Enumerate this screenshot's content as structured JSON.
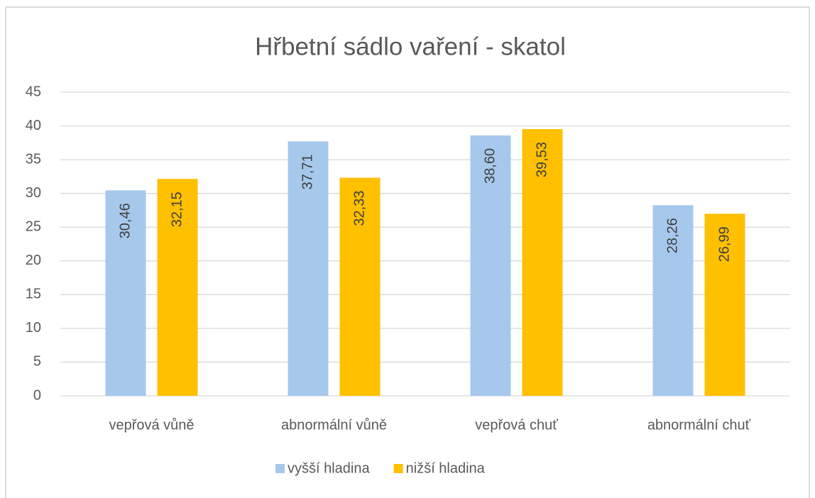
{
  "chart_data": {
    "type": "bar",
    "title": "Hřbetní sádlo vaření - skatol",
    "categories": [
      "vepřová vůně",
      "abnormální vůně",
      "vepřová chuť",
      "abnormální chuť"
    ],
    "series": [
      {
        "name": "vyšší hladina",
        "color": "#a6c8ec",
        "values": [
          30.46,
          37.71,
          38.6,
          28.26
        ],
        "value_labels": [
          "30,46",
          "37,71",
          "38,60",
          "28,26"
        ]
      },
      {
        "name": "nižší hladina",
        "color": "#ffc000",
        "values": [
          32.15,
          32.33,
          39.53,
          26.99
        ],
        "value_labels": [
          "32,15",
          "32,33",
          "39,53",
          "26,99"
        ]
      }
    ],
    "ylim": [
      0,
      45
    ],
    "yticks": [
      0,
      5,
      10,
      15,
      20,
      25,
      30,
      35,
      40,
      45
    ],
    "grid": true,
    "legend": "bottom"
  }
}
